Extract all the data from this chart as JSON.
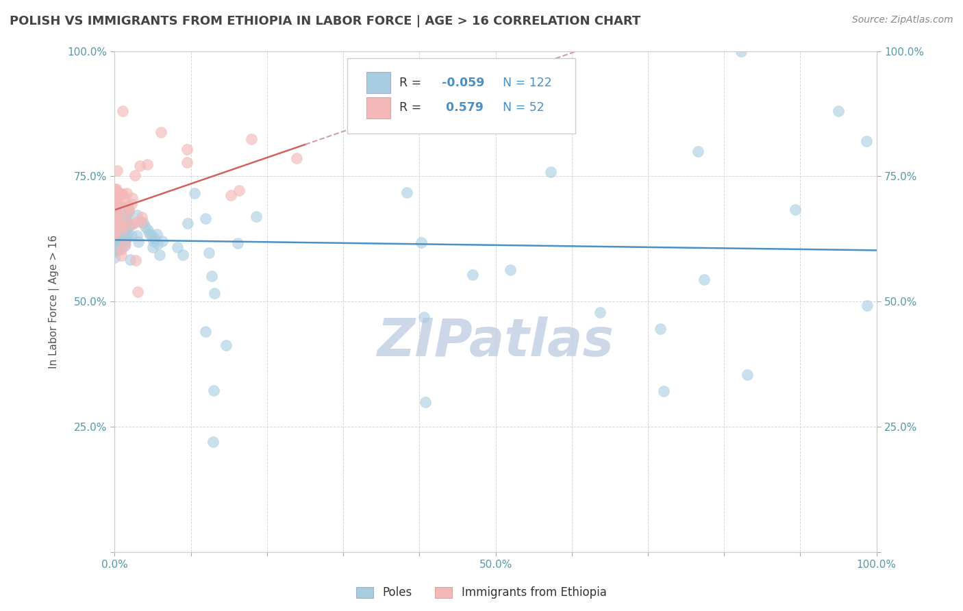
{
  "title": "POLISH VS IMMIGRANTS FROM ETHIOPIA IN LABOR FORCE | AGE > 16 CORRELATION CHART",
  "source": "Source: ZipAtlas.com",
  "ylabel": "In Labor Force | Age > 16",
  "xlim": [
    0.0,
    1.0
  ],
  "ylim": [
    0.0,
    1.0
  ],
  "xtick_positions": [
    0.0,
    0.1,
    0.2,
    0.3,
    0.4,
    0.5,
    0.6,
    0.7,
    0.8,
    0.9,
    1.0
  ],
  "ytick_positions": [
    0.0,
    0.25,
    0.5,
    0.75,
    1.0
  ],
  "ytick_labels": [
    "",
    "25.0%",
    "50.0%",
    "75.0%",
    "100.0%"
  ],
  "xtick_labels": [
    "0.0%",
    "",
    "",
    "",
    "",
    "50.0%",
    "",
    "",
    "",
    "",
    "100.0%"
  ],
  "right_ytick_labels": [
    "",
    "25.0%",
    "50.0%",
    "75.0%",
    "100.0%"
  ],
  "poles_R": -0.059,
  "poles_N": 122,
  "ethiopia_R": 0.579,
  "ethiopia_N": 52,
  "poles_color": "#a8cce0",
  "ethiopia_color": "#f4b8b8",
  "poles_line_color": "#4a90c4",
  "ethiopia_line_color": "#d46060",
  "ethiopia_dash_color": "#d0a0a0",
  "grid_color": "#cccccc",
  "background_color": "#ffffff",
  "watermark": "ZIPatlas",
  "watermark_color": "#ccd8e8",
  "tick_color": "#5599aa",
  "title_color": "#444444",
  "source_color": "#888888"
}
